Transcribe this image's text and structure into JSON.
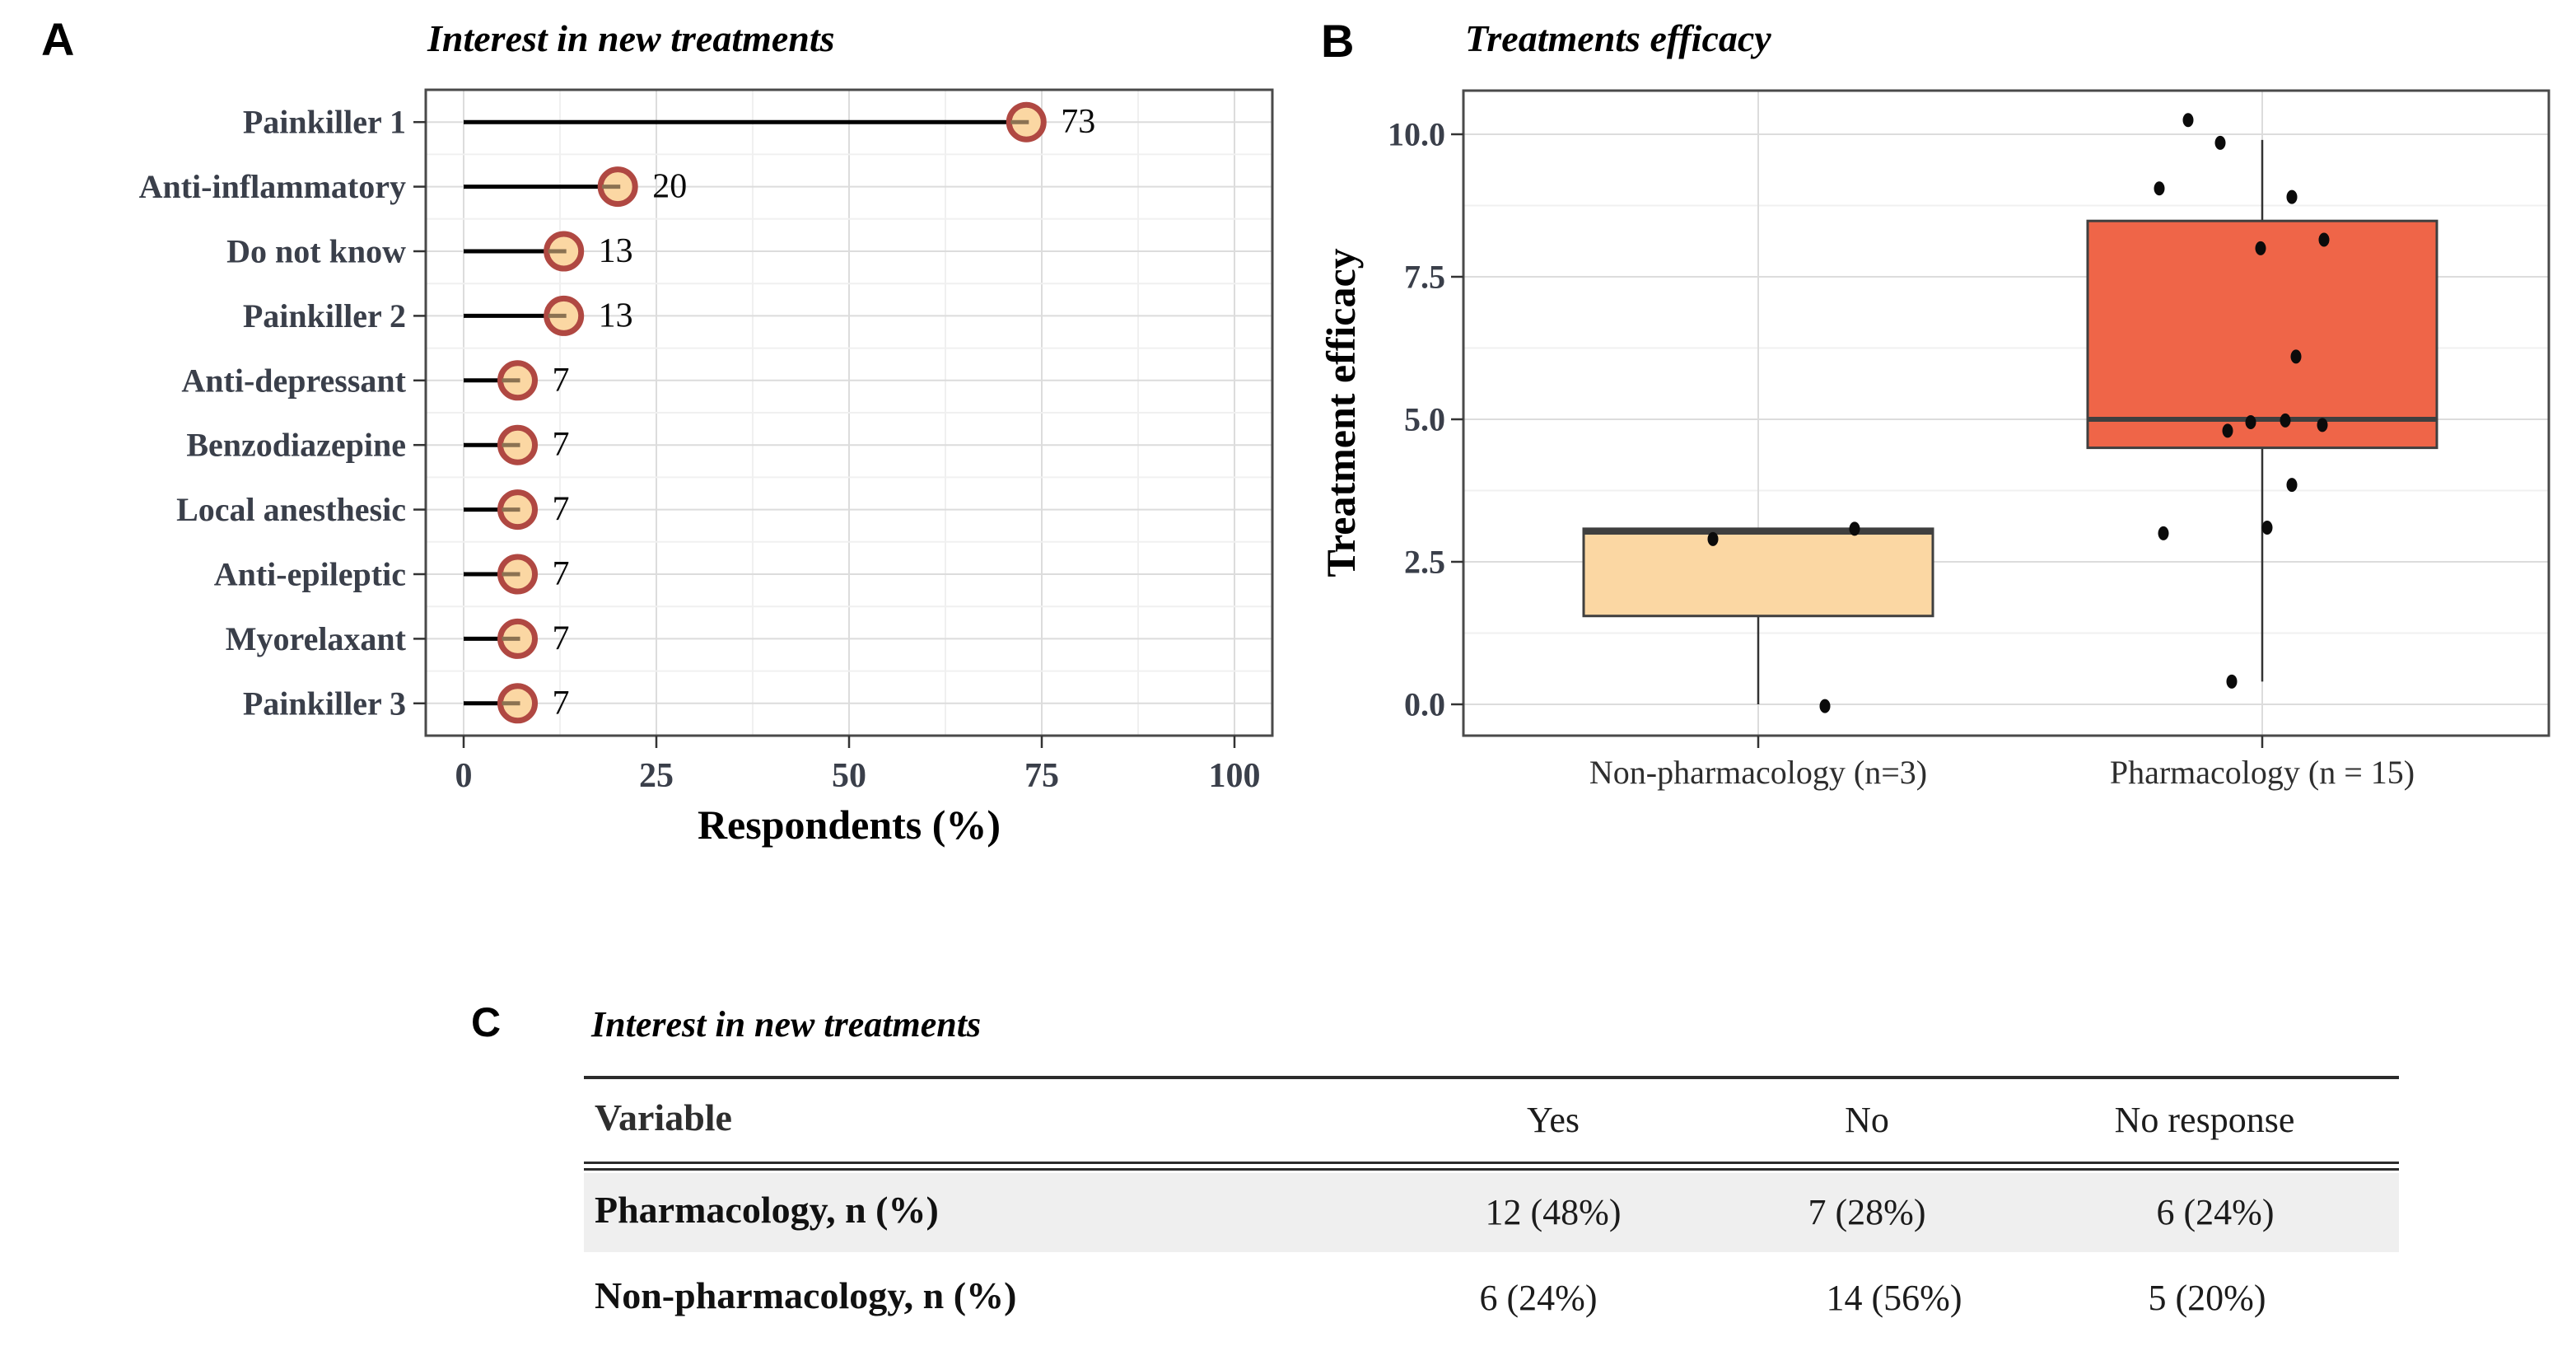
{
  "panel_letters": {
    "a": "A",
    "b": "B",
    "c": "C"
  },
  "colors": {
    "peach_fill": "#FBD7A3",
    "red_fill": "#EF6548",
    "point_stroke": "#B04842",
    "point_stub": "#8B7252",
    "stem": "#000000",
    "box_stroke": "#3F3F3F",
    "grid_major": "#DCDCDC",
    "grid_minor": "#F0F0F0",
    "panel_border": "#4A4A4A",
    "tick_text": "#3A3F4A",
    "axis_tick": "#333333",
    "dot": "#0B0B0B",
    "table_shade": "#EFEFEF",
    "table_rule": "#2B2B2B"
  },
  "chart_data": [
    {
      "id": "interest_lollipop",
      "type": "bar",
      "subtype": "lollipop",
      "title": "Interest in new treatments",
      "xlabel": "Respondents (%)",
      "ylabel": "",
      "categories": [
        "Painkiller 1",
        "Anti-inflammatory",
        "Do not know",
        "Painkiller 2",
        "Anti-depressant",
        "Benzodiazepine",
        "Local anesthesic",
        "Anti-epileptic",
        "Myorelaxant",
        "Painkiller 3"
      ],
      "values": [
        73,
        20,
        13,
        13,
        7,
        7,
        7,
        7,
        7,
        7
      ],
      "value_labels": [
        "73",
        "20",
        "13",
        "13",
        "7",
        "7",
        "7",
        "7",
        "7",
        "7"
      ],
      "xlim": [
        -4.9,
        104.9
      ],
      "x_ticks": [
        {
          "v": 0,
          "label": "0"
        },
        {
          "v": 25,
          "label": "25"
        },
        {
          "v": 50,
          "label": "50"
        },
        {
          "v": 75,
          "label": "75"
        },
        {
          "v": 100,
          "label": "100"
        }
      ],
      "x_minor": [
        12.5,
        37.5,
        62.5,
        87.5
      ],
      "grid": true,
      "legend": "none"
    },
    {
      "id": "efficacy_boxplot",
      "type": "boxplot",
      "title": "Treatments efficacy",
      "xlabel": "",
      "ylabel": "Treatment efficacy",
      "ylim": [
        -0.55,
        10.8
      ],
      "y_ticks": [
        {
          "v": 10.0,
          "label": "10.0"
        },
        {
          "v": 7.5,
          "label": "7.5"
        },
        {
          "v": 5.0,
          "label": "5.0"
        },
        {
          "v": 2.5,
          "label": "2.5"
        },
        {
          "v": 0.0,
          "label": "0.0"
        }
      ],
      "y_minor": [
        8.75,
        6.25,
        3.75,
        1.25
      ],
      "grid": true,
      "legend": "none",
      "groups": [
        {
          "label": "Non-pharmacology (n=3)",
          "n": 3,
          "fill": "#FBD7A3",
          "box": {
            "q1": 1.55,
            "median": 3.02,
            "q3": 3.08,
            "whisker_low": 0.0,
            "whisker_high": 3.08
          },
          "points": [
            {
              "v": 2.9,
              "dx": -55
            },
            {
              "v": 3.08,
              "dx": 117
            },
            {
              "v": -0.03,
              "dx": 81
            }
          ]
        },
        {
          "label": "Pharmacology (n = 15)",
          "n": 15,
          "fill": "#EF6548",
          "box": {
            "q1": 4.5,
            "median": 5.0,
            "q3": 8.48,
            "whisker_low": 0.4,
            "whisker_high": 9.9
          },
          "points": [
            {
              "v": 10.25,
              "dx": -90
            },
            {
              "v": 9.85,
              "dx": -51
            },
            {
              "v": 9.05,
              "dx": -125
            },
            {
              "v": 8.9,
              "dx": 36
            },
            {
              "v": 8.0,
              "dx": -2
            },
            {
              "v": 8.15,
              "dx": 75
            },
            {
              "v": 6.1,
              "dx": 41
            },
            {
              "v": 4.95,
              "dx": -14
            },
            {
              "v": 4.98,
              "dx": 28
            },
            {
              "v": 4.9,
              "dx": 73
            },
            {
              "v": 4.8,
              "dx": -42
            },
            {
              "v": 3.85,
              "dx": 36
            },
            {
              "v": 3.1,
              "dx": 6
            },
            {
              "v": 3.0,
              "dx": -120
            },
            {
              "v": 0.4,
              "dx": -37
            }
          ]
        }
      ]
    }
  ],
  "table": {
    "title": "Interest in new treatments",
    "columns": [
      "Variable",
      "Yes",
      "No",
      "No response"
    ],
    "rows": [
      {
        "label": "Pharmacology, n (%)",
        "values": [
          "12 (48%)",
          "7 (28%)",
          "6 (24%)"
        ],
        "shaded": true
      },
      {
        "label": "Non-pharmacology, n (%)",
        "values": [
          "6 (24%)",
          "14 (56%)",
          "5 (20%)"
        ],
        "shaded": false
      }
    ]
  }
}
